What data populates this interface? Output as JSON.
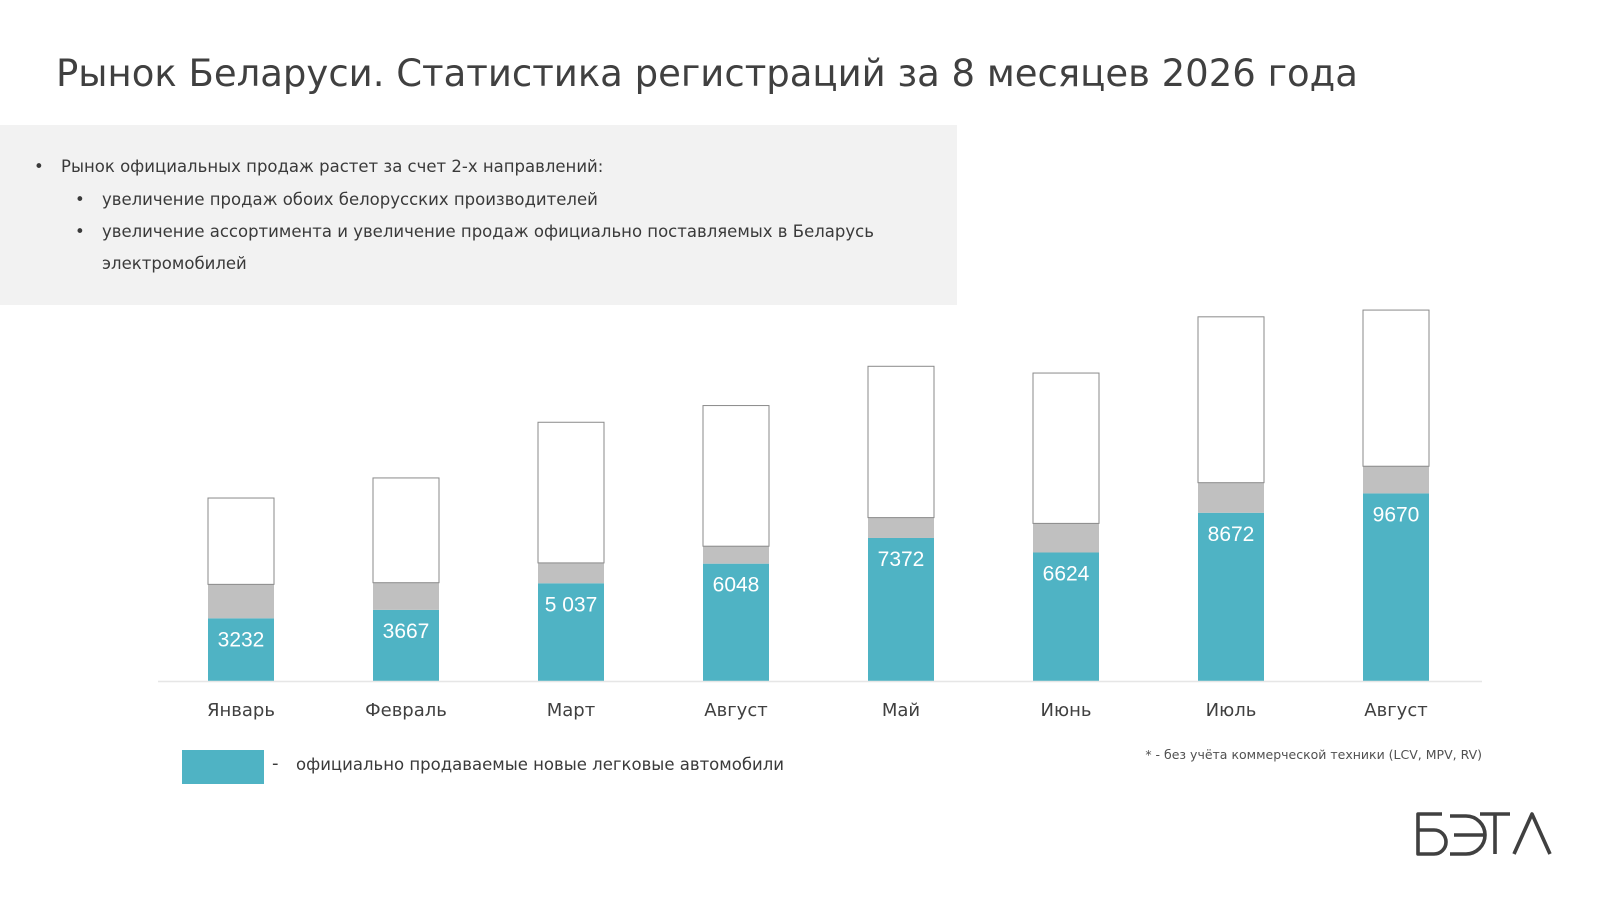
{
  "title": "Рынок Беларуси. Статистика регистраций за 8 месяцев 2026 года",
  "info": {
    "bullet_symbol": "•",
    "main": "Рынок официальных продаж растет за счет 2-х направлений:",
    "sub1": "увеличение продаж обоих белорусских производителей",
    "sub2": "увеличение ассортимента и увеличение продаж официально поставляемых в Беларусь электромобилей"
  },
  "legend": {
    "dash": "-",
    "label": "официально продаваемые новые легковые автомобили"
  },
  "footnote": "* - без учёта коммерческой техники (LCV, MPV, RV)",
  "logo_text": "БЭТА",
  "colors": {
    "teal": "#4fb3c4",
    "gray": "#c0c0c0",
    "outline": "#8a8a8a"
  },
  "chart_data": {
    "type": "bar",
    "stacked": true,
    "categories": [
      "Январь",
      "Февраль",
      "Март",
      "Август",
      "Май",
      "Июнь",
      "Июль",
      "Август"
    ],
    "value_labels": [
      "3232",
      "3667",
      "5 037",
      "6048",
      "7372",
      "6624",
      "8672",
      "9670"
    ],
    "series": [
      {
        "values": [
          3232,
          3667,
          5037,
          6048,
          7372,
          6624,
          8672,
          9670
        ],
        "color": "#4fb3c4"
      },
      {
        "values": [
          1750,
          1400,
          1050,
          900,
          1050,
          1500,
          1550,
          1400
        ],
        "color": "#c0c0c0"
      },
      {
        "values": [
          4450,
          5400,
          7250,
          7250,
          7800,
          7750,
          8550,
          8050
        ],
        "color": "#ffffff"
      }
    ],
    "grid": false,
    "legend": "bottom-left"
  }
}
